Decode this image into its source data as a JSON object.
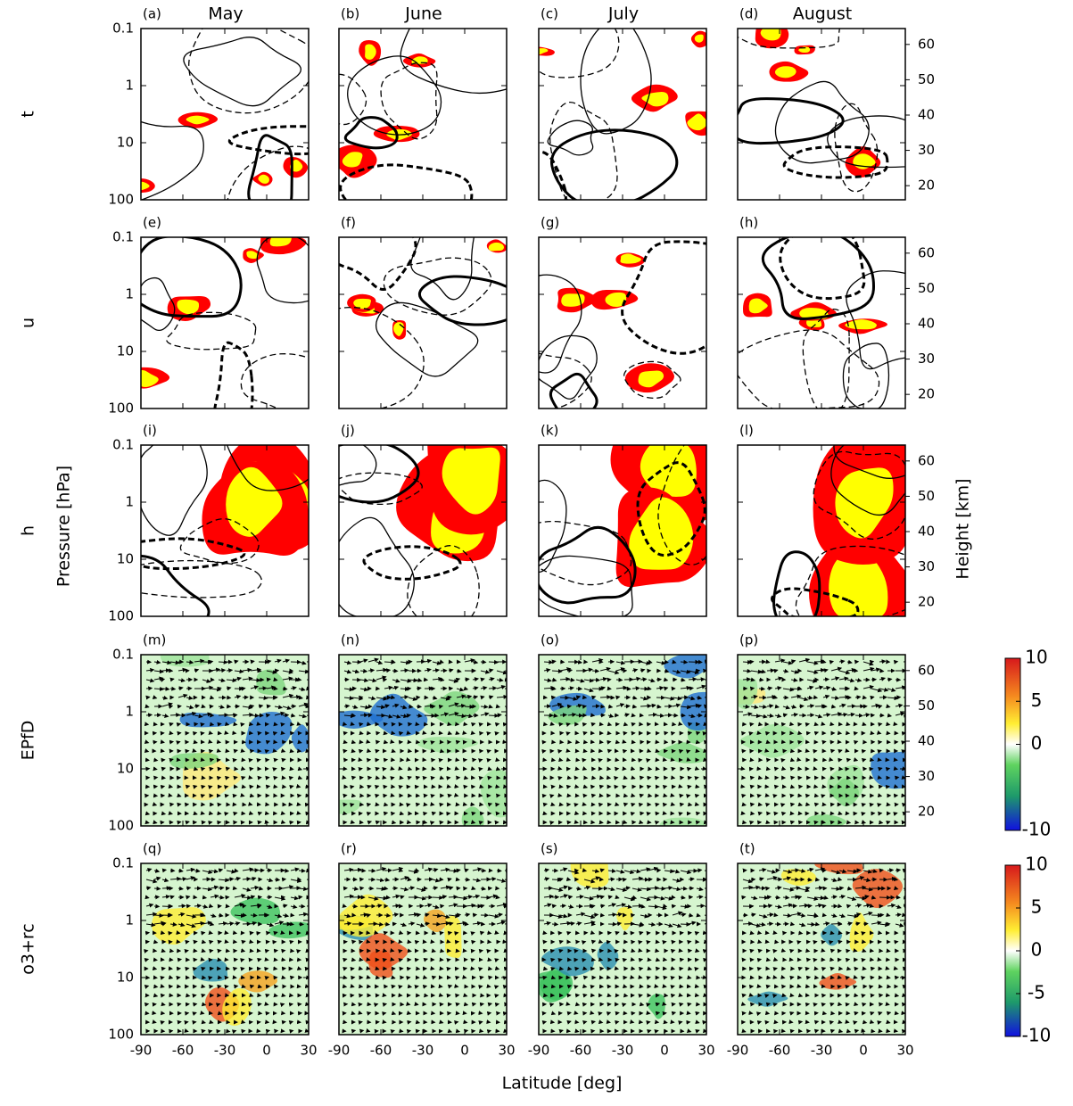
{
  "chart_data": {
    "type": "contour",
    "columns": [
      "May",
      "June",
      "July",
      "August"
    ],
    "rows": [
      "t",
      "u",
      "h",
      "EPfD",
      "o3+rc"
    ],
    "panel_labels": [
      "(a)",
      "(b)",
      "(c)",
      "(d)",
      "(e)",
      "(f)",
      "(g)",
      "(h)",
      "(i)",
      "(j)",
      "(k)",
      "(l)",
      "(m)",
      "(n)",
      "(o)",
      "(p)",
      "(q)",
      "(r)",
      "(s)",
      "(t)"
    ],
    "y_label": "Pressure [hPa]",
    "y2_label": "Height [km]",
    "x_label": "Latitude [deg]",
    "xlim": [
      -90,
      30
    ],
    "xticks": [
      -90,
      -60,
      -30,
      0,
      30
    ],
    "ylim": [
      100,
      0.1
    ],
    "log_y": true,
    "yticks": [
      0.1,
      1,
      10,
      100
    ],
    "y2lim": [
      16,
      64.5
    ],
    "y2ticks": [
      20,
      30,
      40,
      50,
      60
    ],
    "colorbars": [
      {
        "lim": [
          -10,
          10
        ],
        "ticks": [
          10,
          5,
          0,
          -10
        ]
      },
      {
        "lim": [
          -10,
          10
        ],
        "ticks": [
          10,
          5,
          0,
          -5,
          -10
        ]
      }
    ]
  }
}
